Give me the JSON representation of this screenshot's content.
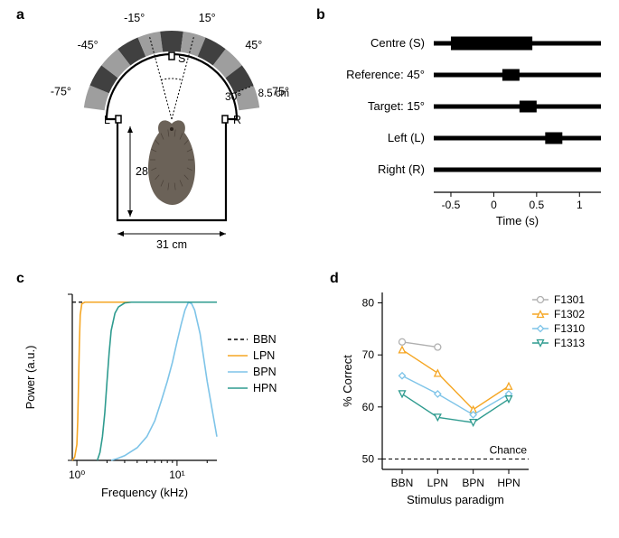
{
  "panel_a": {
    "label": "a",
    "angles": [
      "-75°",
      "-45°",
      "-15°",
      "15°",
      "45°",
      "75°"
    ],
    "spoke_labels": {
      "left": "L",
      "right": "R",
      "center": "S"
    },
    "arc_label": "30°",
    "radius_label": "8.5 cm",
    "height_label": "28 cm",
    "width_label": "31 cm",
    "colors": {
      "outline": "#000000",
      "speaker_dark": "#404040",
      "speaker_light": "#9e9e9e"
    }
  },
  "panel_b": {
    "label": "b",
    "rows": [
      "Centre (S)",
      "Reference: 45°",
      "Target: 15°",
      "Left (L)",
      "Right (R)"
    ],
    "xlabel": "Time (s)",
    "xticks": [
      "-0.5",
      "0",
      "0.5",
      "1"
    ],
    "xlim": [
      -0.7,
      1.25
    ],
    "events": [
      {
        "base_y": 0,
        "start": -0.5,
        "end": 0.45,
        "height": 10
      },
      {
        "base_y": 1,
        "start": 0.1,
        "end": 0.3,
        "height": 8
      },
      {
        "base_y": 2,
        "start": 0.3,
        "end": 0.5,
        "height": 8
      },
      {
        "base_y": 3,
        "start": 0.6,
        "end": 0.8,
        "height": 8
      }
    ],
    "colors": {
      "bar": "#000000"
    }
  },
  "panel_c": {
    "label": "c",
    "xlabel": "Frequency (kHz)",
    "ylabel": "Power (a.u.)",
    "xticks": [
      1,
      10
    ],
    "xticklabels": [
      "10⁰",
      "10¹"
    ],
    "xlim": [
      0.9,
      25
    ],
    "ylim": [
      0,
      1.05
    ],
    "scale": "log",
    "legend": [
      "BBN",
      "LPN",
      "BPN",
      "HPN"
    ],
    "series": {
      "BBN": {
        "color": "#000000",
        "dash": "4,3",
        "width": 1.2,
        "shape": "hline",
        "y": 1.0
      },
      "LPN": {
        "color": "#f5a623",
        "dash": "none",
        "width": 1.6,
        "pts": [
          [
            0.9,
            0
          ],
          [
            0.95,
            0.02
          ],
          [
            1.0,
            0.1
          ],
          [
            1.02,
            0.25
          ],
          [
            1.04,
            0.5
          ],
          [
            1.06,
            0.75
          ],
          [
            1.08,
            0.92
          ],
          [
            1.12,
            0.99
          ],
          [
            1.2,
            1.0
          ],
          [
            25,
            1.0
          ]
        ]
      },
      "BPN": {
        "color": "#7ec4e8",
        "dash": "none",
        "width": 1.6,
        "pts": [
          [
            2.2,
            0
          ],
          [
            2.5,
            0.01
          ],
          [
            3,
            0.03
          ],
          [
            4,
            0.08
          ],
          [
            5,
            0.15
          ],
          [
            6,
            0.25
          ],
          [
            7,
            0.38
          ],
          [
            8,
            0.5
          ],
          [
            9,
            0.62
          ],
          [
            10,
            0.75
          ],
          [
            11,
            0.86
          ],
          [
            12,
            0.95
          ],
          [
            13,
            1.0
          ],
          [
            14,
            0.99
          ],
          [
            15,
            0.95
          ],
          [
            17,
            0.8
          ],
          [
            20,
            0.5
          ],
          [
            25,
            0.15
          ]
        ]
      },
      "HPN": {
        "color": "#2e9b8f",
        "dash": "none",
        "width": 1.6,
        "pts": [
          [
            1.6,
            0
          ],
          [
            1.7,
            0.05
          ],
          [
            1.8,
            0.15
          ],
          [
            1.9,
            0.3
          ],
          [
            2.0,
            0.5
          ],
          [
            2.1,
            0.68
          ],
          [
            2.2,
            0.82
          ],
          [
            2.4,
            0.93
          ],
          [
            2.6,
            0.97
          ],
          [
            3.0,
            0.995
          ],
          [
            3.5,
            1.0
          ],
          [
            25,
            1.0
          ]
        ]
      }
    },
    "axis_color": "#000000"
  },
  "panel_d": {
    "label": "d",
    "xlabel": "Stimulus paradigm",
    "ylabel": "% Correct",
    "xticks": [
      "BBN",
      "LPN",
      "BPN",
      "HPN"
    ],
    "yticks": [
      50,
      60,
      70,
      80
    ],
    "ylim": [
      48,
      82
    ],
    "chance_y": 50,
    "chance_label": "Chance",
    "legend": [
      "F1301",
      "F1302",
      "F1310",
      "F1313"
    ],
    "series": {
      "F1301": {
        "color": "#b0b0b0",
        "marker": "circle",
        "pts": [
          72.5,
          71.5,
          null,
          null
        ]
      },
      "F1302": {
        "color": "#f5a623",
        "marker": "triangle-up",
        "pts": [
          71,
          66.5,
          59.5,
          64
        ]
      },
      "F1310": {
        "color": "#7ec4e8",
        "marker": "diamond",
        "pts": [
          66,
          62.5,
          58.5,
          62.5
        ]
      },
      "F1313": {
        "color": "#2e9b8f",
        "marker": "triangle-down",
        "pts": [
          62.5,
          58,
          57,
          61.5
        ]
      }
    },
    "axis_color": "#000000",
    "marker_size": 7,
    "line_width": 1.4
  }
}
